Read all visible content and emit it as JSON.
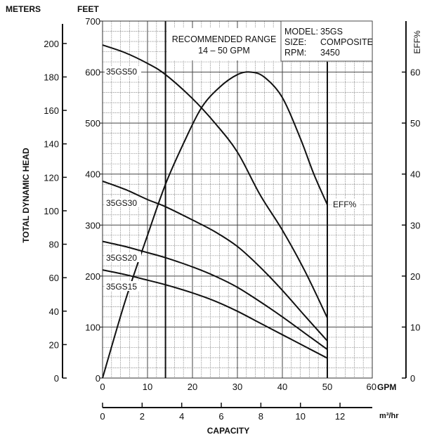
{
  "chart_data": {
    "type": "line",
    "title": "",
    "info_box": {
      "model_label": "MODEL:",
      "model_value": "35GS",
      "size_label": "SIZE:",
      "size_value": "COMPOSITE",
      "rpm_label": "RPM:",
      "rpm_value": "3450"
    },
    "recommended_range": {
      "line1": "RECOMMENDED RANGE",
      "line2": "14 – 50 GPM",
      "from_gpm": 14,
      "to_gpm": 50
    },
    "x_axis": {
      "unit": "GPM",
      "ticks": [
        "0",
        "10",
        "20",
        "30",
        "40",
        "50",
        "60"
      ],
      "range": [
        0,
        60
      ]
    },
    "x2_axis": {
      "unit": "m³/hr",
      "ticks": [
        "0",
        "2",
        "4",
        "6",
        "8",
        "10",
        "12"
      ],
      "range": [
        0,
        13.63
      ]
    },
    "xlabel": "CAPACITY",
    "y_axis_feet": {
      "title": "FEET",
      "ticks": [
        "0",
        "100",
        "200",
        "300",
        "400",
        "500",
        "600",
        "700"
      ],
      "range": [
        0,
        700
      ]
    },
    "y_axis_meters": {
      "title": "METERS",
      "ticks": [
        "0",
        "20",
        "40",
        "60",
        "80",
        "100",
        "120",
        "140",
        "160",
        "180",
        "200"
      ],
      "range": [
        0,
        213.4
      ]
    },
    "ylabel": "TOTAL DYNAMIC HEAD",
    "y_axis_eff": {
      "title": "EFF%",
      "ticks": [
        "0",
        "10",
        "20",
        "30",
        "40",
        "50",
        "60"
      ],
      "range": [
        0,
        70
      ]
    },
    "grid": true,
    "series": [
      {
        "name": "35GS50",
        "axis": "feet",
        "x": [
          0,
          5,
          10,
          14,
          20,
          25,
          30,
          35,
          40,
          45,
          50
        ],
        "y": [
          653,
          638,
          617,
          595,
          548,
          500,
          443,
          360,
          290,
          210,
          118
        ]
      },
      {
        "name": "35GS30",
        "axis": "feet",
        "x": [
          0,
          5,
          10,
          14,
          20,
          25,
          30,
          35,
          40,
          45,
          50
        ],
        "y": [
          386,
          370,
          350,
          336,
          310,
          287,
          258,
          218,
          172,
          122,
          73
        ]
      },
      {
        "name": "35GS20",
        "axis": "feet",
        "x": [
          0,
          5,
          10,
          14,
          20,
          25,
          30,
          35,
          40,
          45,
          50
        ],
        "y": [
          268,
          258,
          246,
          236,
          218,
          200,
          178,
          150,
          120,
          88,
          56
        ]
      },
      {
        "name": "35GS15",
        "axis": "feet",
        "x": [
          0,
          5,
          10,
          14,
          20,
          25,
          30,
          35,
          40,
          45,
          50
        ],
        "y": [
          212,
          203,
          192,
          183,
          167,
          151,
          131,
          108,
          85,
          62,
          39
        ]
      },
      {
        "name": "EFF%",
        "axis": "eff",
        "x": [
          0,
          5,
          10,
          14,
          18,
          22,
          26,
          30,
          33,
          36,
          40,
          44,
          47,
          50
        ],
        "y": [
          0,
          15,
          28,
          38,
          46,
          53,
          57,
          59.5,
          60,
          59,
          55,
          47,
          40,
          34
        ]
      }
    ],
    "curve_labels": [
      "35GS50",
      "35GS30",
      "35GS20",
      "35GS15",
      "EFF%"
    ]
  }
}
